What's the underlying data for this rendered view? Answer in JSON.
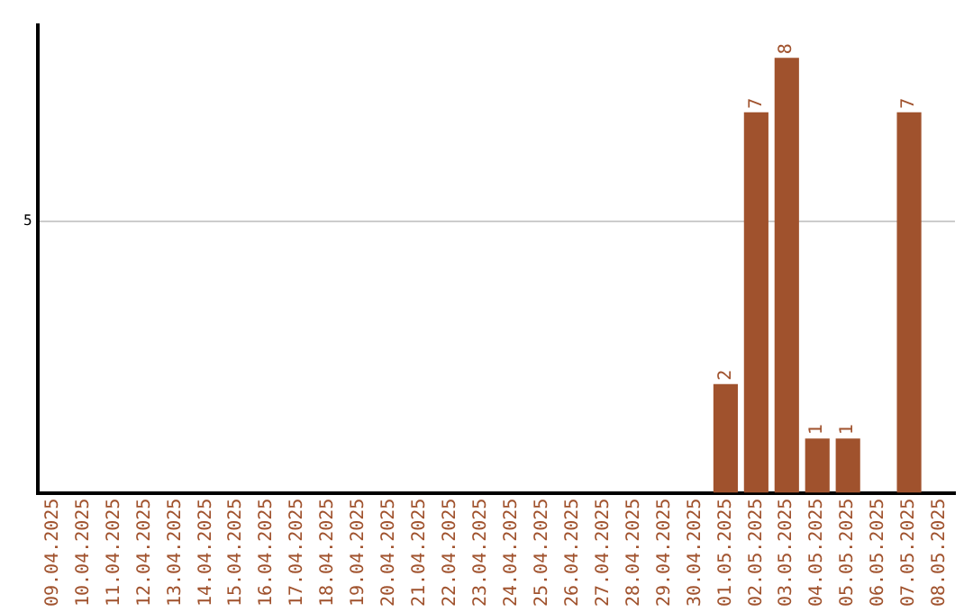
{
  "chart_data": {
    "type": "bar",
    "categories": [
      "09.04.2025",
      "10.04.2025",
      "11.04.2025",
      "12.04.2025",
      "13.04.2025",
      "14.04.2025",
      "15.04.2025",
      "16.04.2025",
      "17.04.2025",
      "18.04.2025",
      "19.04.2025",
      "20.04.2025",
      "21.04.2025",
      "22.04.2025",
      "23.04.2025",
      "24.04.2025",
      "25.04.2025",
      "26.04.2025",
      "27.04.2025",
      "28.04.2025",
      "29.04.2025",
      "30.04.2025",
      "01.05.2025",
      "02.05.2025",
      "03.05.2025",
      "04.05.2025",
      "05.05.2025",
      "06.05.2025",
      "07.05.2025",
      "08.05.2025"
    ],
    "values": [
      null,
      null,
      null,
      null,
      null,
      null,
      null,
      null,
      null,
      null,
      null,
      null,
      null,
      null,
      null,
      null,
      null,
      null,
      null,
      null,
      null,
      null,
      2,
      7,
      8,
      1,
      1,
      null,
      7,
      null
    ],
    "data_labels": true,
    "color": "#a0522d",
    "ylim": [
      0,
      8.6
    ],
    "yticks": [
      5
    ],
    "grid": "y",
    "legend": false
  }
}
